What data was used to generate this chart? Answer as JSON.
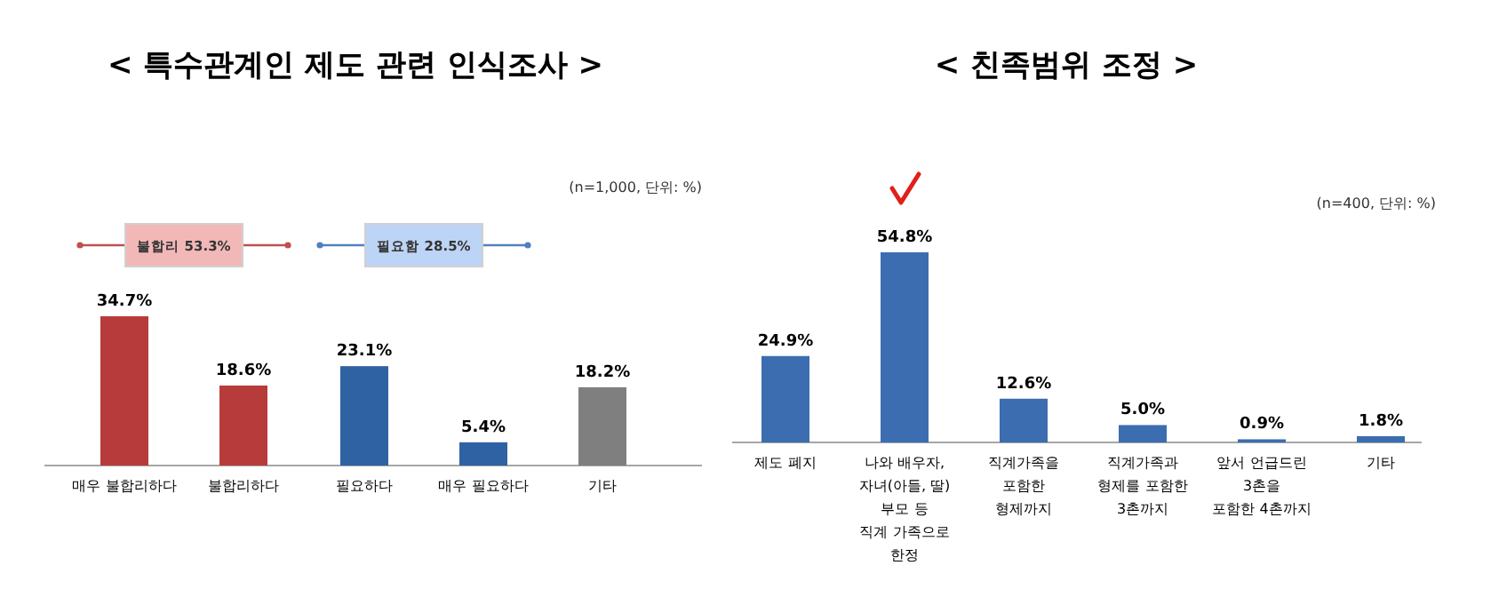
{
  "chart_data": [
    {
      "type": "bar",
      "title": "< 특수관계인 제도 관련 인식조사 >",
      "categories": [
        "매우 불합리하다",
        "불합리하다",
        "필요하다",
        "매우 필요하다",
        "기타"
      ],
      "values": [
        34.7,
        18.6,
        23.1,
        5.4,
        18.2
      ],
      "colors": [
        "#b83b3b",
        "#b83b3b",
        "#2f62a3",
        "#2f62a3",
        "#7f7f7f"
      ],
      "value_labels": [
        "34.7%",
        "18.6%",
        "23.1%",
        "5.4%",
        "18.2%"
      ],
      "annotations": [
        "(n=1,000, 단위: %)",
        "불합리 53.3%",
        "필요함 28.5%"
      ]
    },
    {
      "type": "bar",
      "title": "< 친족범위 조정 >",
      "categories": [
        "제도 폐지",
        "나와 배우자,\n자녀(아들, 딸)\n부모 등\n직계 가족으로\n한정",
        "직계가족을\n포함한\n형제까지",
        "직계가족과\n형제를 포함한\n3촌까지",
        "앞서 언급드린\n3촌을\n포함한 4촌까지",
        "기타"
      ],
      "values": [
        24.9,
        54.8,
        12.6,
        5.0,
        0.9,
        1.8
      ],
      "color": "#3b6db0",
      "value_labels": [
        "24.9%",
        "54.8%",
        "12.6%",
        "5.0%",
        "0.9%",
        "1.8%"
      ],
      "annotations": [
        "(n=400, 단위: %)"
      ]
    }
  ]
}
